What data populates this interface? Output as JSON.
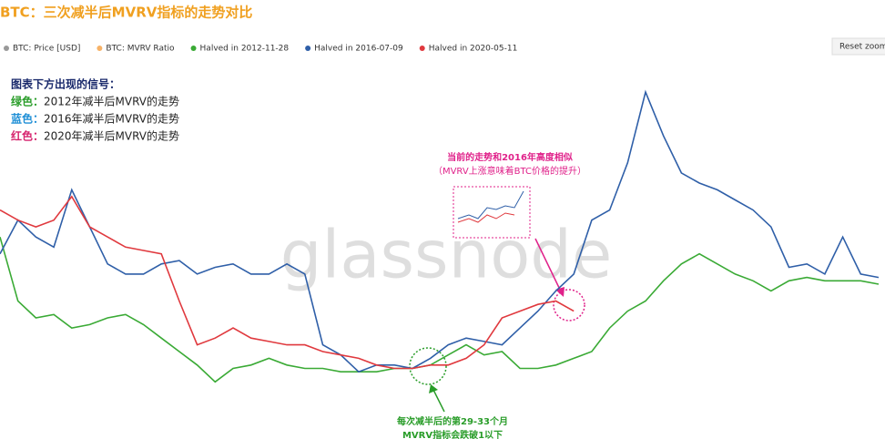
{
  "chart_data": {
    "type": "line",
    "title": "BTC：三次减半后MVRV指标的走势对比",
    "watermark": "glassnode",
    "reset_button": "Reset zoom",
    "legend_extra": [
      {
        "name": "BTC: Price [USD]",
        "color": "#999999"
      },
      {
        "name": "BTC: MVRV Ratio",
        "color": "#f7b267"
      }
    ],
    "notes": {
      "heading": "图表下方出现的信号：",
      "lines": [
        {
          "prefix": "绿色：",
          "text": "2012年减半后MVRV的走势",
          "color": "#2a9d2a"
        },
        {
          "prefix": "蓝色：",
          "text": "2016年减半后MVRV的走势",
          "color": "#1f8fd6"
        },
        {
          "prefix": "红色：",
          "text": "2020年减半后MVRV的走势",
          "color": "#d6246e"
        }
      ]
    },
    "annotations": [
      {
        "lines": [
          "当前的走势和2016年高度相似",
          "（MVRV上涨意味着BTC价格的提升）"
        ],
        "color": "#e0218a"
      },
      {
        "lines": [
          "每次减半后的第29-33个月",
          "MVRV指标会跌破1以下"
        ],
        "color": "#2a9d2a"
      }
    ],
    "ylim": [
      0,
      100
    ],
    "series": [
      {
        "name": "Halved in 2012-11-28",
        "color": "#3aaa35",
        "values": [
          54,
          35,
          30,
          31,
          27,
          28,
          30,
          31,
          28,
          24,
          20,
          16,
          11,
          15,
          16,
          18,
          16,
          15,
          15,
          14,
          14,
          14,
          15,
          15,
          16,
          19,
          22,
          19,
          20,
          15,
          15,
          16,
          18,
          20,
          27,
          32,
          35,
          41,
          46,
          49,
          46,
          43,
          41,
          38,
          41,
          42,
          41,
          41,
          41,
          40
        ]
      },
      {
        "name": "Halved in 2016-07-09",
        "color": "#2f5fa8",
        "values": [
          49,
          59,
          54,
          51,
          68,
          57,
          46,
          43,
          43,
          46,
          47,
          43,
          45,
          46,
          43,
          43,
          46,
          43,
          22,
          19,
          14,
          16,
          16,
          15,
          18,
          22,
          24,
          23,
          22,
          27,
          32,
          38,
          43,
          59,
          62,
          76,
          97,
          84,
          73,
          70,
          68,
          65,
          62,
          57,
          45,
          46,
          43,
          54,
          43,
          42
        ]
      },
      {
        "name": "Halved in 2020-05-11",
        "color": "#e0393e",
        "values": [
          62,
          59,
          57,
          59,
          66,
          57,
          54,
          51,
          50,
          49,
          35,
          22,
          24,
          27,
          24,
          23,
          22,
          22,
          20,
          19,
          18,
          16,
          15,
          15,
          16,
          16,
          18,
          22,
          30,
          32,
          34,
          35,
          32,
          null,
          null,
          null,
          null,
          null,
          null,
          null,
          null,
          null,
          null,
          null,
          null,
          null,
          null,
          null,
          null,
          null
        ]
      }
    ]
  }
}
